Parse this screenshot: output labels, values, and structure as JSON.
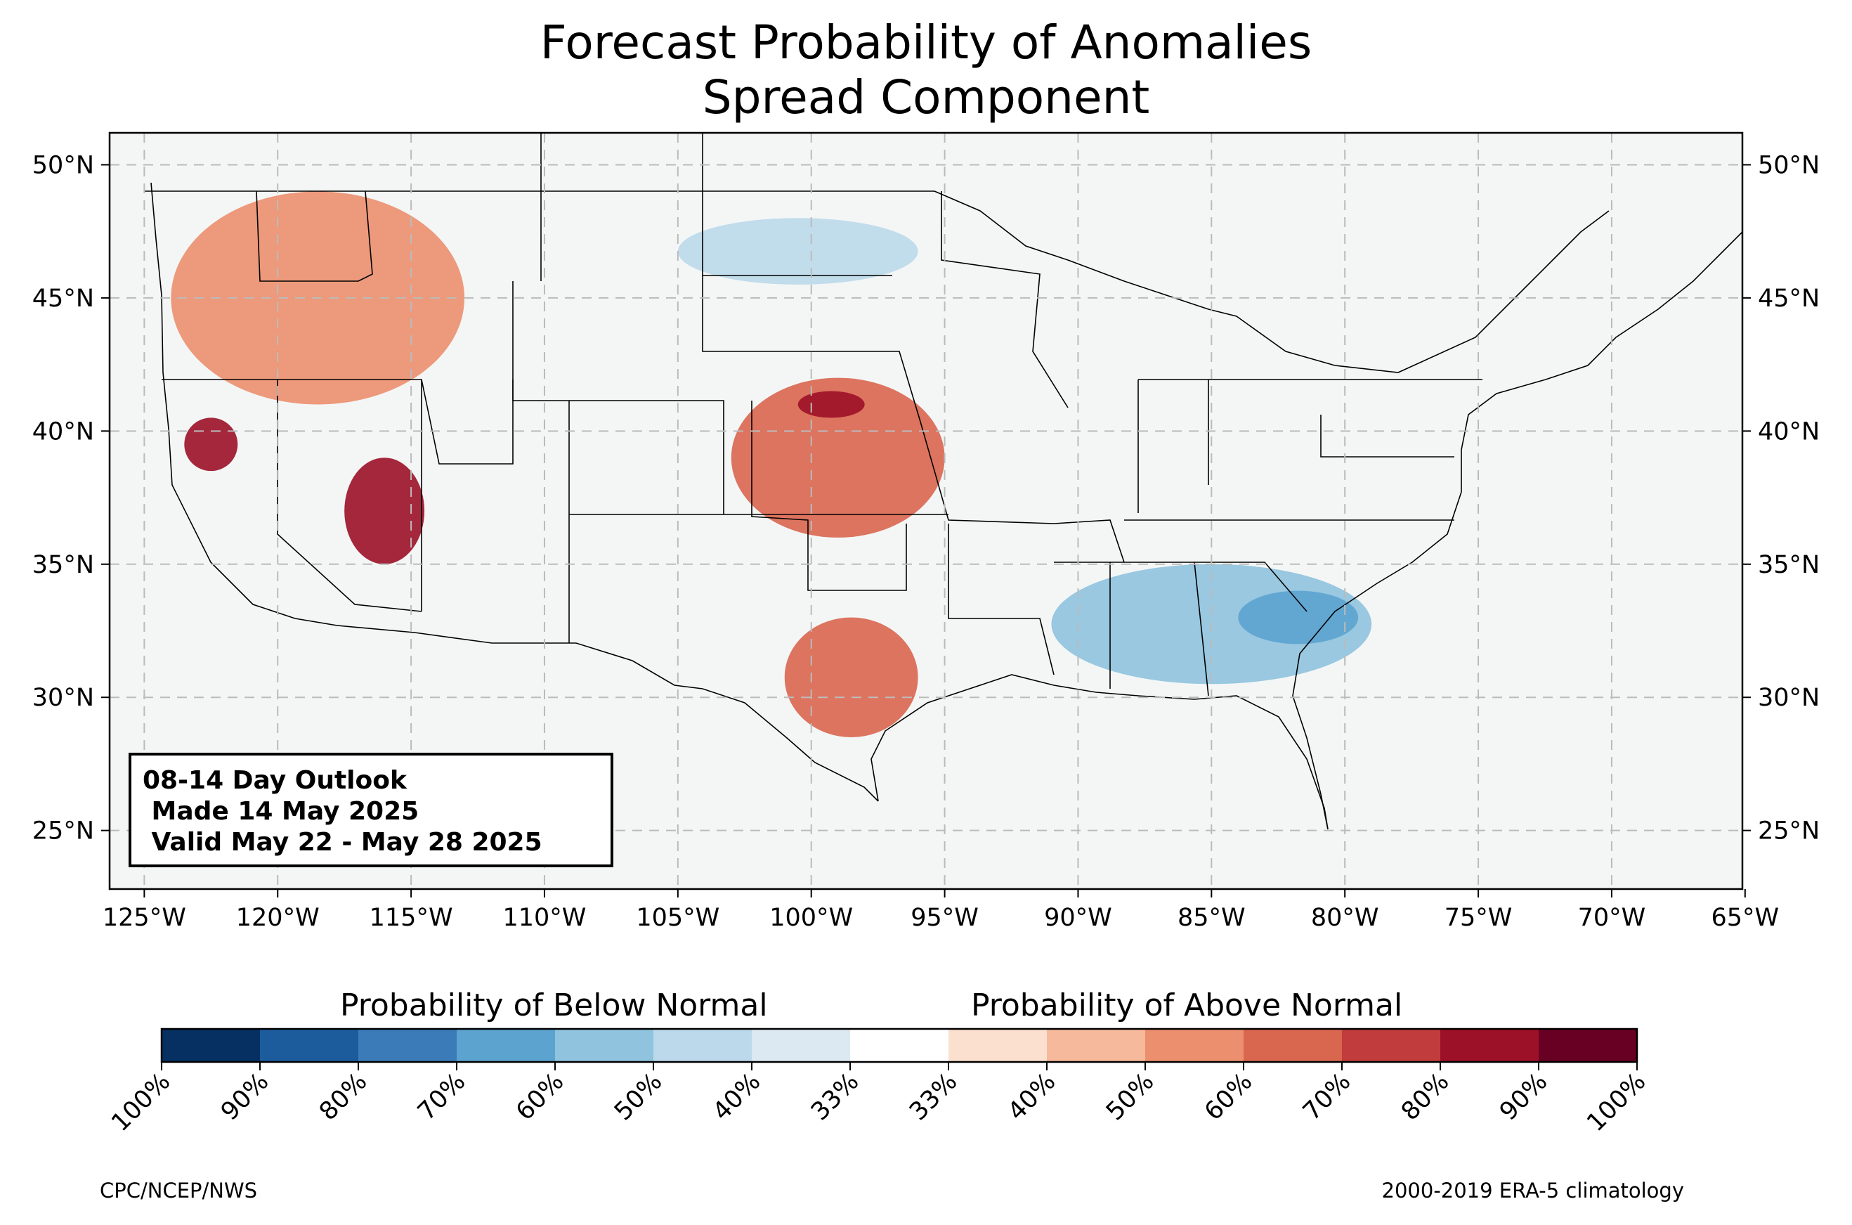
{
  "title": {
    "line1": "Forecast Probability of Anomalies",
    "line2": "Spread Component"
  },
  "map": {
    "background_color": "#f4f6f6",
    "extent": {
      "lon": [
        -126.3,
        -65.1
      ],
      "lat": [
        22.8,
        51.2
      ]
    },
    "lon_ticks": [
      "125°W",
      "120°W",
      "115°W",
      "110°W",
      "105°W",
      "100°W",
      "95°W",
      "90°W",
      "85°W",
      "80°W",
      "75°W",
      "70°W",
      "65°W"
    ],
    "lon_values": [
      -125,
      -120,
      -115,
      -110,
      -105,
      -100,
      -95,
      -90,
      -85,
      -80,
      -75,
      -70,
      -65
    ],
    "lat_ticks": [
      "50°N",
      "45°N",
      "40°N",
      "35°N",
      "30°N",
      "25°N"
    ],
    "lat_values": [
      50,
      45,
      40,
      35,
      30,
      25
    ],
    "gridlines": true,
    "gridline_style": "dashed",
    "anomaly_regions": [
      {
        "area": "Pacific Northwest",
        "category": "above",
        "level": "50%",
        "lon": [
          -124,
          -113
        ],
        "lat": [
          41,
          49
        ]
      },
      {
        "area": "Northern California",
        "category": "above",
        "level": "80%",
        "lon": [
          -123.5,
          -121.5
        ],
        "lat": [
          38.5,
          40.5
        ]
      },
      {
        "area": "Nevada / Southern California",
        "category": "above",
        "level": "80%",
        "lon": [
          -117.5,
          -114.5
        ],
        "lat": [
          35,
          39
        ]
      },
      {
        "area": "Central Plains",
        "category": "above",
        "level": "60%",
        "lon": [
          -103,
          -95
        ],
        "lat": [
          36,
          42
        ]
      },
      {
        "area": "Nebraska / Kansas",
        "category": "above",
        "level": "80%",
        "lon": [
          -100.5,
          -98
        ],
        "lat": [
          40.5,
          41.5
        ]
      },
      {
        "area": "Texas",
        "category": "above",
        "level": "60%",
        "lon": [
          -101,
          -96
        ],
        "lat": [
          28.5,
          33
        ]
      },
      {
        "area": "Southeast",
        "category": "below",
        "level": "50%",
        "lon": [
          -91,
          -79
        ],
        "lat": [
          30.5,
          35
        ]
      },
      {
        "area": "Georgia / South Carolina",
        "category": "below",
        "level": "60%",
        "lon": [
          -84,
          -79.5
        ],
        "lat": [
          32,
          34
        ]
      },
      {
        "area": "North Dakota",
        "category": "below",
        "level": "40%",
        "lon": [
          -105,
          -96
        ],
        "lat": [
          45.5,
          48
        ]
      }
    ]
  },
  "outlook_box": {
    "line1": "08-14 Day Outlook",
    "line2": " Made 14 May 2025",
    "line3": " Valid May 22 - May 28 2025"
  },
  "colorbar": {
    "below_label": "Probability of Below Normal",
    "above_label": "Probability of Above Normal",
    "bins": [
      {
        "color": "#053061"
      },
      {
        "color": "#1c5c9c"
      },
      {
        "color": "#3a7bb8"
      },
      {
        "color": "#5ca3d0"
      },
      {
        "color": "#8fc3de"
      },
      {
        "color": "#bbd9ea"
      },
      {
        "color": "#dce9f2"
      },
      {
        "color": "#ffffff"
      },
      {
        "color": "#fbdfcf"
      },
      {
        "color": "#f6b99b"
      },
      {
        "color": "#ec8f6e"
      },
      {
        "color": "#d9664f"
      },
      {
        "color": "#c13c3c"
      },
      {
        "color": "#9c1127"
      },
      {
        "color": "#670022"
      }
    ],
    "tick_labels": [
      "100%",
      "90%",
      "80%",
      "70%",
      "60%",
      "50%",
      "40%",
      "33%",
      "33%",
      "40%",
      "50%",
      "60%",
      "70%",
      "80%",
      "90%",
      "100%"
    ]
  },
  "footer": {
    "left": "CPC/NCEP/NWS",
    "right": "2000-2019 ERA-5 climatology"
  }
}
